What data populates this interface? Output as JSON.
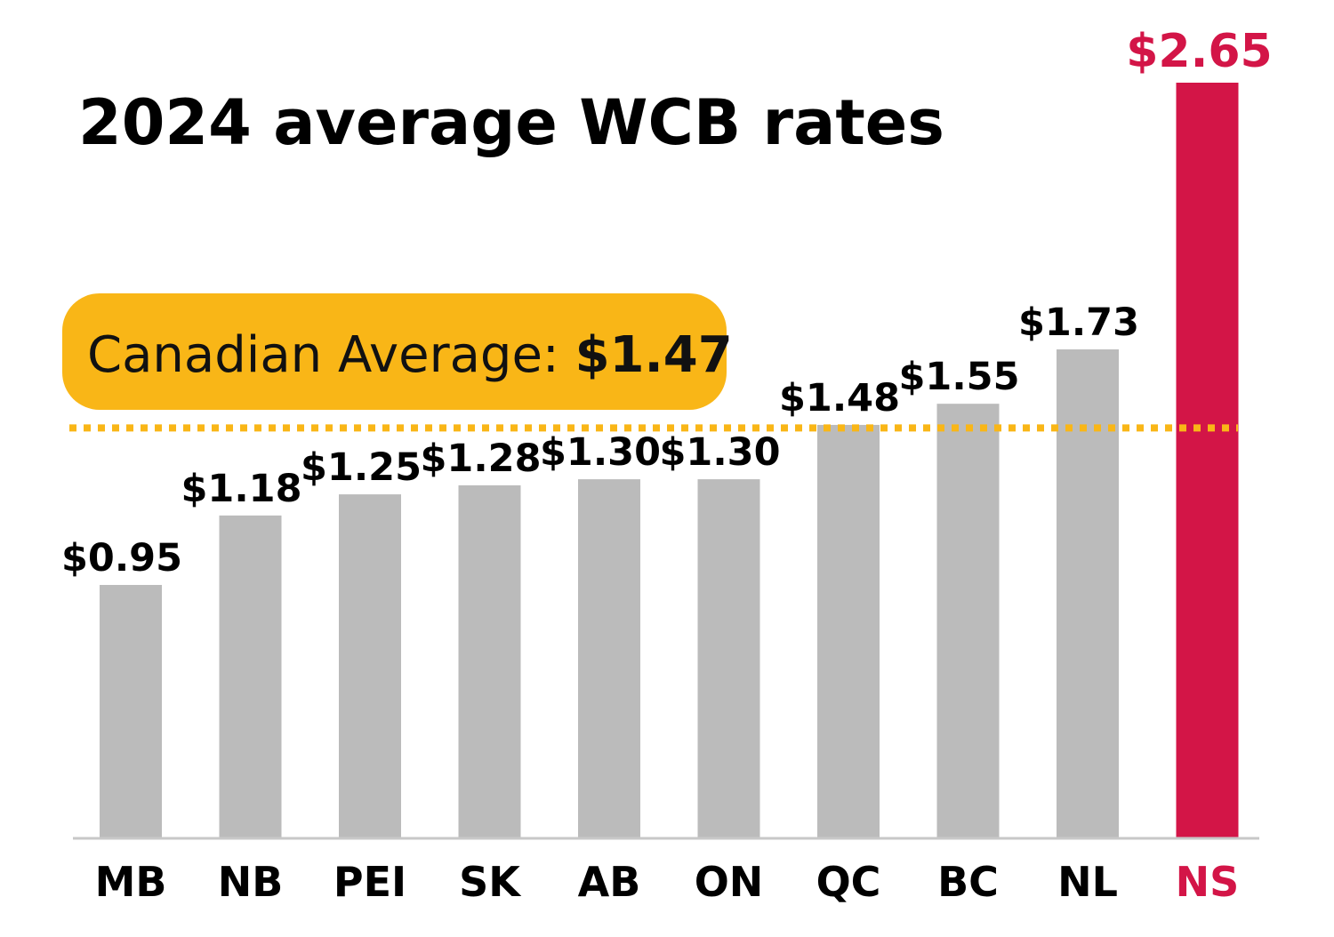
{
  "chart_data": {
    "type": "bar",
    "title": "2024 average WCB rates",
    "categories": [
      "MB",
      "NB",
      "PEI",
      "SK",
      "AB",
      "ON",
      "QC",
      "BC",
      "NL",
      "NS"
    ],
    "values": [
      0.95,
      1.18,
      1.25,
      1.28,
      1.3,
      1.3,
      1.48,
      1.55,
      1.73,
      2.65
    ],
    "value_labels": [
      "$0.95",
      "$1.18",
      "$1.25",
      "$1.28",
      "$1.30",
      "$1.30",
      "$1.48",
      "$1.55",
      "$1.73",
      "$2.65"
    ],
    "highlight_category": "NS",
    "reference_line": {
      "label": "Canadian Average: ",
      "value_label": "$1.47",
      "value": 1.47,
      "style": "dotted"
    },
    "xlabel": "",
    "ylabel": "",
    "grid": false,
    "colors": {
      "bar": "#BBBBBB",
      "highlight": "#D31547",
      "average": "#F9B617",
      "axis": "#C8C8C8",
      "text": "#000000"
    }
  }
}
